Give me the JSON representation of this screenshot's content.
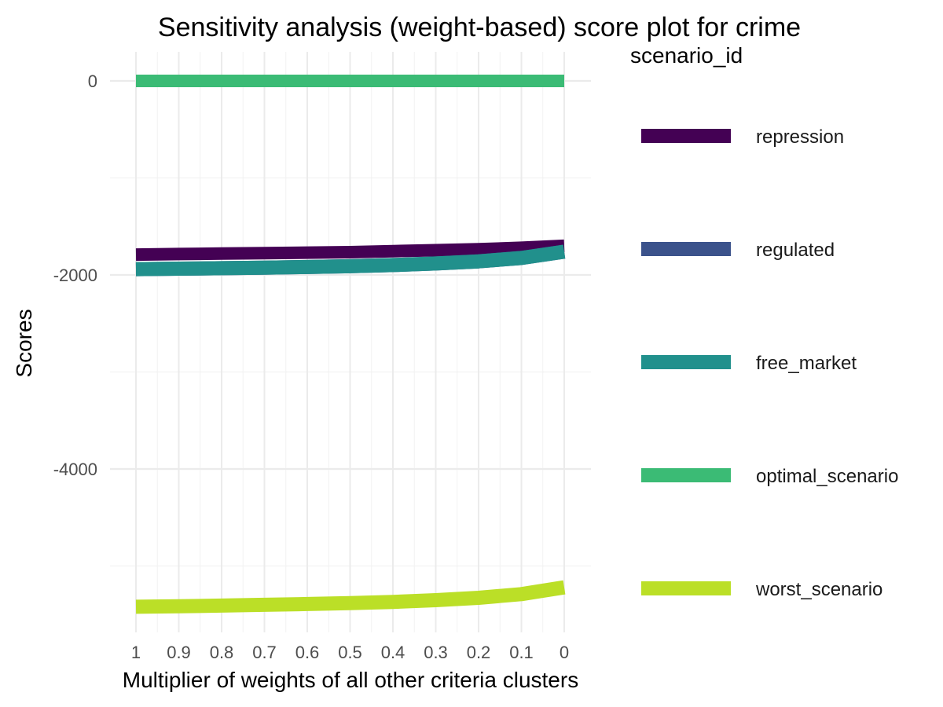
{
  "chart_data": {
    "type": "line",
    "title": "Sensitivity analysis (weight-based) score plot for crime",
    "xlabel": "Multiplier of weights of all other criteria clusters",
    "ylabel": "Scores",
    "x": [
      1,
      0.9,
      0.8,
      0.7,
      0.6,
      0.5,
      0.4,
      0.3,
      0.2,
      0.1,
      0
    ],
    "x_tick_labels": [
      "1",
      "0.9",
      "0.8",
      "0.7",
      "0.6",
      "0.5",
      "0.4",
      "0.3",
      "0.2",
      "0.1",
      "0"
    ],
    "x_reversed": true,
    "xlim": [
      1,
      0
    ],
    "y_ticks": [
      0,
      -2000,
      -4000
    ],
    "y_tick_labels": [
      "0",
      "-2000",
      "-4000"
    ],
    "ylim": [
      -5600,
      300
    ],
    "grid": true,
    "legend": {
      "title": "scenario_id",
      "position": "right"
    },
    "series": [
      {
        "name": "repression",
        "color": "#440154",
        "values": [
          -1790,
          -1785,
          -1780,
          -1775,
          -1770,
          -1765,
          -1755,
          -1745,
          -1735,
          -1720,
          -1700
        ]
      },
      {
        "name": "regulated",
        "color": "#3b528b",
        "values": [
          -1940,
          -1935,
          -1930,
          -1925,
          -1918,
          -1910,
          -1898,
          -1882,
          -1860,
          -1825,
          -1760
        ]
      },
      {
        "name": "free_market",
        "color": "#21908c",
        "values": [
          -1940,
          -1935,
          -1930,
          -1925,
          -1918,
          -1910,
          -1898,
          -1882,
          -1860,
          -1825,
          -1760
        ]
      },
      {
        "name": "optimal_scenario",
        "color": "#3bbb75",
        "values": [
          0,
          0,
          0,
          0,
          0,
          0,
          0,
          0,
          0,
          0,
          0
        ]
      },
      {
        "name": "worst_scenario",
        "color": "#bbdf27",
        "values": [
          -5420,
          -5415,
          -5408,
          -5400,
          -5392,
          -5383,
          -5370,
          -5352,
          -5328,
          -5290,
          -5220
        ]
      }
    ]
  }
}
